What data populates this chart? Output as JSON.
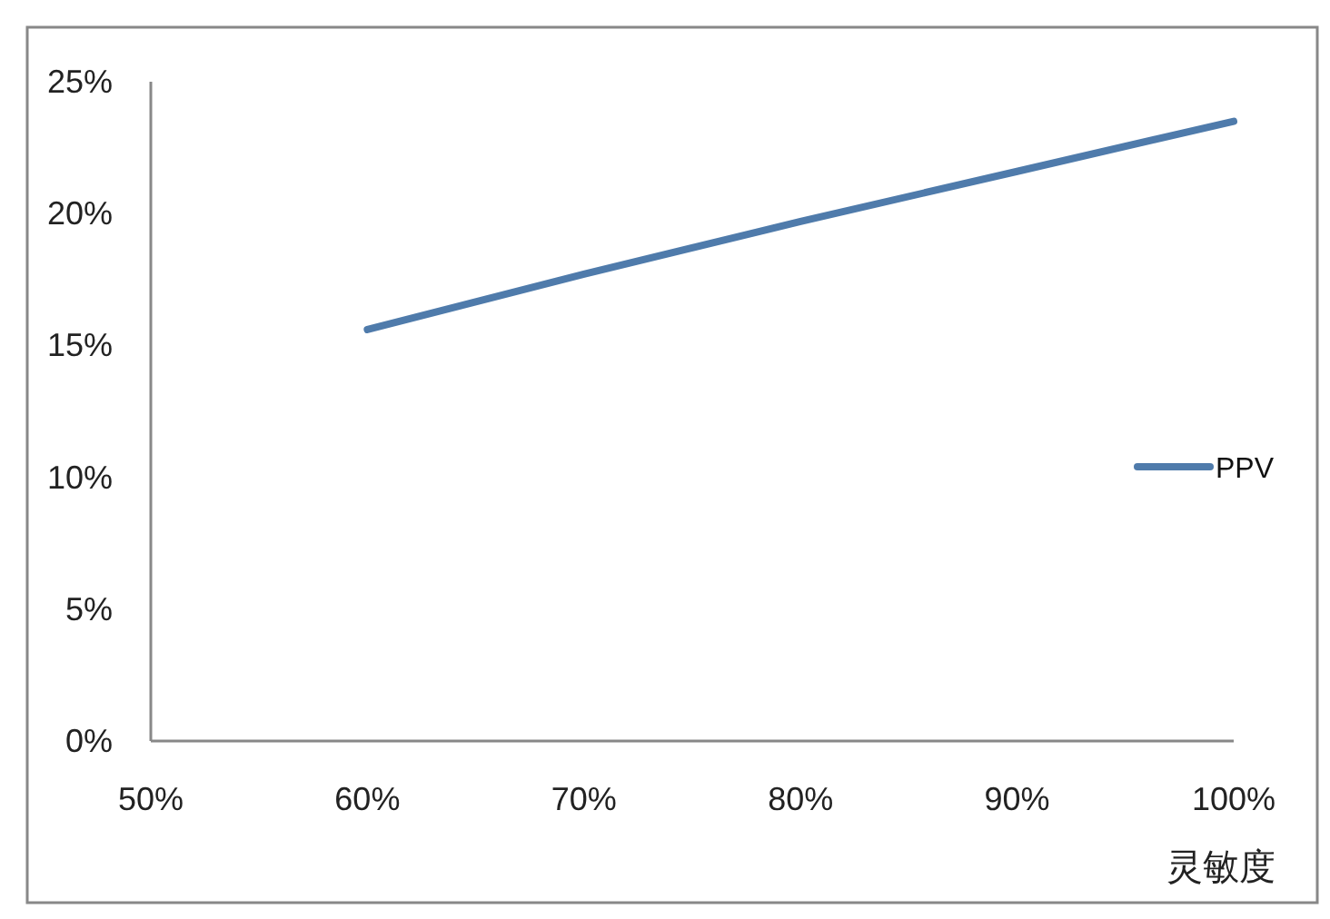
{
  "chart_data": {
    "type": "line",
    "xlabel": "灵敏度",
    "x": [
      60,
      70,
      80,
      90,
      100
    ],
    "series": [
      {
        "name": "PPV",
        "color": "#4f7bab",
        "values": [
          15.6,
          17.7,
          19.7,
          21.6,
          23.5
        ]
      }
    ],
    "xlim": [
      50,
      100
    ],
    "ylim": [
      0,
      25
    ],
    "xticks": [
      {
        "value": 50,
        "label": "50%"
      },
      {
        "value": 60,
        "label": "60%"
      },
      {
        "value": 70,
        "label": "70%"
      },
      {
        "value": 80,
        "label": "80%"
      },
      {
        "value": 90,
        "label": "90%"
      },
      {
        "value": 100,
        "label": "100%"
      }
    ],
    "yticks": [
      {
        "value": 0,
        "label": "0%"
      },
      {
        "value": 5,
        "label": "5%"
      },
      {
        "value": 10,
        "label": "10%"
      },
      {
        "value": 15,
        "label": "15%"
      },
      {
        "value": 20,
        "label": "20%"
      },
      {
        "value": 25,
        "label": "25%"
      }
    ],
    "legend": "right",
    "grid": false,
    "marker": "none",
    "line_style": "solid"
  }
}
